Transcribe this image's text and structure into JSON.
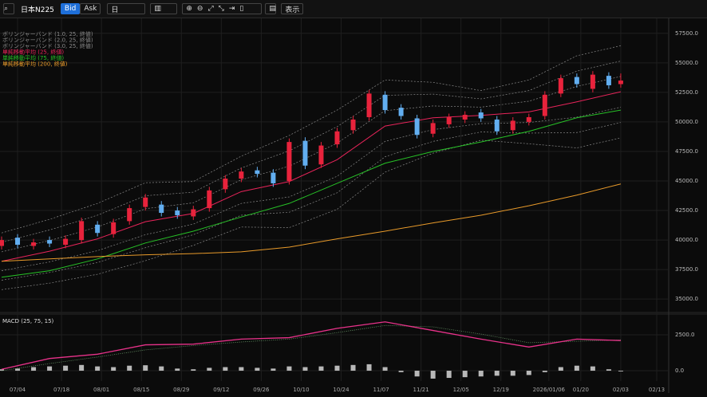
{
  "toolbar": {
    "symbol": "日本N225",
    "bid": "Bid",
    "ask": "Ask",
    "period": "日",
    "view": "表示"
  },
  "chart_data": [
    {
      "type": "candlestick",
      "ylim": [
        34000,
        58700
      ],
      "xlim": [
        -4.4,
        163
      ],
      "yticks": [
        {
          "value": 57500,
          "label": "57500.0"
        },
        {
          "value": 55000,
          "label": "55000.0"
        },
        {
          "value": 52500,
          "label": "52500.0"
        },
        {
          "value": 50000,
          "label": "50000.0"
        },
        {
          "value": 47500,
          "label": "47500.0"
        },
        {
          "value": 45000,
          "label": "45000.0"
        },
        {
          "value": 42500,
          "label": "42500.0"
        },
        {
          "value": 40000,
          "label": "40000.0"
        },
        {
          "value": 37500,
          "label": "37500.0"
        },
        {
          "value": 35000,
          "label": "35000.0"
        }
      ],
      "xticks": [
        {
          "value": 0,
          "label": "07/04"
        },
        {
          "value": 11,
          "label": "07/18"
        },
        {
          "value": 21,
          "label": "08/01"
        },
        {
          "value": 31,
          "label": "08/15"
        },
        {
          "value": 41,
          "label": "08/29"
        },
        {
          "value": 51,
          "label": "09/12"
        },
        {
          "value": 61,
          "label": "09/26"
        },
        {
          "value": 71,
          "label": "10/10"
        },
        {
          "value": 81,
          "label": "10/24"
        },
        {
          "value": 91,
          "label": "11/07"
        },
        {
          "value": 101,
          "label": "11/21"
        },
        {
          "value": 111,
          "label": "12/05"
        },
        {
          "value": 121,
          "label": "12/19"
        },
        {
          "value": 133,
          "label": "2026/01/06"
        },
        {
          "value": 141,
          "label": "01/20"
        },
        {
          "value": 151,
          "label": "02/03"
        },
        {
          "value": 160,
          "label": "02/13"
        }
      ],
      "grid": true,
      "up_color": "#e8233c",
      "down_color": "#62aef0",
      "candles": {
        "x": [
          -4,
          0,
          4,
          8,
          12,
          16,
          20,
          24,
          28,
          32,
          36,
          40,
          44,
          48,
          52,
          56,
          60,
          64,
          68,
          72,
          76,
          80,
          84,
          88,
          92,
          96,
          100,
          104,
          108,
          112,
          116,
          120,
          124,
          128,
          132,
          136,
          140,
          144,
          148,
          151
        ],
        "open": [
          39500,
          40200,
          39500,
          40000,
          39600,
          40000,
          41300,
          40500,
          41600,
          42800,
          43000,
          42500,
          42000,
          42700,
          44300,
          45200,
          45900,
          45700,
          45000,
          48400,
          46400,
          48100,
          49300,
          50400,
          52300,
          51200,
          50300,
          49000,
          49800,
          50200,
          50800,
          50200,
          49300,
          50000,
          50500,
          52400,
          53800,
          52800,
          53900,
          53200
        ],
        "high": [
          40300,
          40500,
          40100,
          40300,
          40400,
          41900,
          41600,
          41800,
          43000,
          43900,
          43300,
          42800,
          42900,
          44500,
          45500,
          46100,
          46200,
          46000,
          48600,
          48700,
          48300,
          49500,
          50500,
          52700,
          52600,
          51500,
          50600,
          50200,
          50700,
          50900,
          51100,
          50500,
          50400,
          50700,
          52600,
          54000,
          54100,
          54300,
          54200,
          54100
        ],
        "low": [
          39200,
          39300,
          39200,
          39400,
          39300,
          39700,
          40300,
          40200,
          41300,
          42500,
          42000,
          41800,
          41700,
          42400,
          44000,
          44900,
          45300,
          44500,
          44700,
          46000,
          46100,
          47800,
          49000,
          50100,
          50700,
          50200,
          48600,
          48700,
          49500,
          49900,
          50000,
          48900,
          49000,
          49700,
          50200,
          52100,
          52900,
          52500,
          52800,
          52900
        ],
        "close": [
          40000,
          39600,
          39800,
          39700,
          40100,
          41600,
          40600,
          41500,
          42700,
          43600,
          42300,
          42100,
          42600,
          44200,
          45200,
          45800,
          45600,
          44800,
          48300,
          46300,
          48000,
          49200,
          50200,
          52400,
          51000,
          50500,
          48900,
          49900,
          50400,
          50600,
          50300,
          49200,
          50100,
          50400,
          52300,
          53700,
          53200,
          54000,
          53100,
          53500
        ]
      },
      "line_x": [
        -4,
        8,
        20,
        32,
        44,
        56,
        68,
        80,
        92,
        104,
        116,
        128,
        140,
        151
      ],
      "bands": [
        {
          "name": "ボリンジャーバンド (1.0, 25, 終値)",
          "color": "#8a8a8a",
          "upper": [
            39000,
            39950,
            41100,
            42650,
            43150,
            45100,
            46250,
            48200,
            50950,
            51350,
            51250,
            51750,
            53000,
            53850
          ],
          "lower": [
            37400,
            38150,
            39100,
            40450,
            41350,
            43100,
            43650,
            45400,
            48350,
            49350,
            49850,
            49950,
            50400,
            51250
          ]
        },
        {
          "name": "ボリンジャーバンド (2.0, 25, 終値)",
          "color": "#8a8a8a",
          "upper": [
            39800,
            40850,
            42100,
            43750,
            44050,
            46100,
            47550,
            49600,
            52250,
            52350,
            51950,
            52650,
            54300,
            55150
          ],
          "lower": [
            36600,
            37250,
            38100,
            39350,
            40450,
            42100,
            42350,
            44000,
            47050,
            48350,
            49150,
            49050,
            49100,
            49950
          ]
        },
        {
          "name": "ボリンジャーバンド (3.0, 25, 終値)",
          "color": "#8a8a8a",
          "upper": [
            40600,
            41750,
            43100,
            44850,
            44950,
            47100,
            48850,
            51000,
            53550,
            53350,
            52650,
            53550,
            55600,
            56450
          ],
          "lower": [
            35800,
            36350,
            37100,
            38250,
            39550,
            41100,
            41050,
            42600,
            45750,
            47350,
            48450,
            48150,
            47800,
            48650
          ]
        }
      ],
      "series": [
        {
          "name": "単純移動平均 (25, 終値)",
          "color": "#e8245a",
          "values": [
            38200,
            39050,
            40100,
            41550,
            42250,
            44100,
            44950,
            46800,
            49650,
            50350,
            50550,
            50850,
            51700,
            52550
          ]
        },
        {
          "name": "単純移動平均 (75, 終値)",
          "color": "#27c227",
          "values": [
            36850,
            37400,
            38400,
            39750,
            40750,
            41950,
            43100,
            44800,
            46500,
            47500,
            48300,
            49200,
            50350,
            51000
          ]
        },
        {
          "name": "単純移動平均 (200, 終値)",
          "color": "#e89a2a",
          "values": [
            38200,
            38400,
            38600,
            38750,
            38850,
            39000,
            39400,
            40100,
            40750,
            41450,
            42100,
            42900,
            43800,
            44750
          ]
        }
      ]
    },
    {
      "type": "macd",
      "title": "MACD (25, 75, 15)",
      "ylim": [
        -720,
        3830
      ],
      "yticks": [
        {
          "value": 2500,
          "label": "2500.0"
        },
        {
          "value": 0,
          "label": "0.0"
        }
      ],
      "line": {
        "color": "#e8328a",
        "values": [
          100,
          850,
          1150,
          1800,
          1850,
          2200,
          2300,
          2950,
          3400,
          2800,
          2200,
          1650,
          2200,
          2100
        ]
      },
      "signal": {
        "color": "#6a9a6a",
        "values": [
          0,
          500,
          950,
          1450,
          1750,
          2000,
          2200,
          2650,
          3150,
          3050,
          2550,
          1950,
          2050,
          2150
        ]
      },
      "histogram": {
        "color": "#b8b8b8",
        "values": [
          100,
          150,
          250,
          300,
          350,
          400,
          300,
          250,
          350,
          380,
          300,
          150,
          100,
          200,
          250,
          250,
          200,
          150,
          300,
          250,
          300,
          350,
          400,
          450,
          250,
          -100,
          -400,
          -550,
          -500,
          -450,
          -400,
          -350,
          -350,
          -300,
          -100,
          250,
          350,
          300,
          100,
          -50
        ]
      }
    }
  ]
}
